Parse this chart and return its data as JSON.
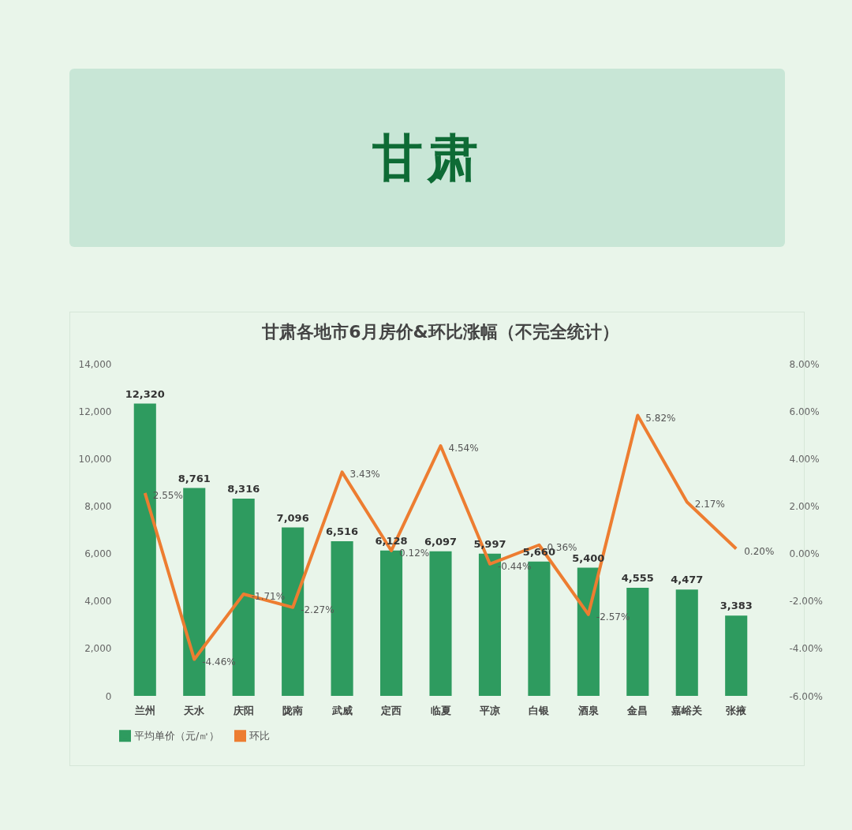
{
  "chart_data": {
    "type": "bar",
    "title": "甘肃",
    "subtitle": "甘肃各地市6月房价&环比涨幅（不完全统计）",
    "categories": [
      "兰州",
      "天水",
      "庆阳",
      "陇南",
      "武威",
      "定西",
      "临夏",
      "平凉",
      "白银",
      "酒泉",
      "金昌",
      "嘉峪关",
      "张掖"
    ],
    "series": [
      {
        "name": "平均单价（元/㎡）",
        "color": "#2e9b5f",
        "values": [
          12320,
          8761,
          8316,
          7096,
          6516,
          6128,
          6097,
          5997,
          5660,
          5400,
          4555,
          4477,
          3383
        ],
        "value_labels": [
          "12,320",
          "8,761",
          "8,316",
          "7,096",
          "6,516",
          "6,128",
          "6,097",
          "5,997",
          "5,660",
          "5,400",
          "4,555",
          "4,477",
          "3,383"
        ]
      },
      {
        "name": "环比",
        "type": "line",
        "axis": "y2",
        "color": "#ed7d31",
        "values": [
          2.55,
          -4.46,
          -1.71,
          -2.27,
          3.43,
          0.12,
          4.54,
          -0.44,
          0.36,
          -2.57,
          5.82,
          2.17,
          0.2
        ],
        "value_labels": [
          "2.55%",
          "-4.46%",
          "-1.71%",
          "-2.27%",
          "3.43%",
          "0.12%",
          "4.54%",
          "-0.44%",
          "0.36%",
          "-2.57%",
          "5.82%",
          "2.17%",
          "0.20%"
        ]
      }
    ],
    "ylim": [
      0,
      14000
    ],
    "yticks": [
      0,
      {
        "value": 2000,
        "label": "2,000"
      },
      {
        "value": 4000,
        "label": "4,000"
      },
      {
        "value": 6000,
        "label": "6,000"
      },
      {
        "value": 8000,
        "label": "8,000"
      },
      {
        "value": 10000,
        "label": "10,000"
      },
      {
        "value": 12000,
        "label": "12,000"
      },
      {
        "value": 14000,
        "label": "14,000"
      }
    ],
    "y2lim": [
      -6,
      8
    ],
    "y2ticks": [
      {
        "value": -6,
        "label": "-6.00%"
      },
      {
        "value": -4,
        "label": "-4.00%"
      },
      {
        "value": -2,
        "label": "-2.00%"
      },
      {
        "value": 0,
        "label": "0.00%"
      },
      {
        "value": 2,
        "label": "2.00%"
      },
      {
        "value": 4,
        "label": "4.00%"
      },
      {
        "value": 6,
        "label": "6.00%"
      },
      {
        "value": 8,
        "label": "8.00%"
      }
    ],
    "grid": false,
    "legend": "bottom",
    "marker": "none",
    "line_style": "solid"
  }
}
